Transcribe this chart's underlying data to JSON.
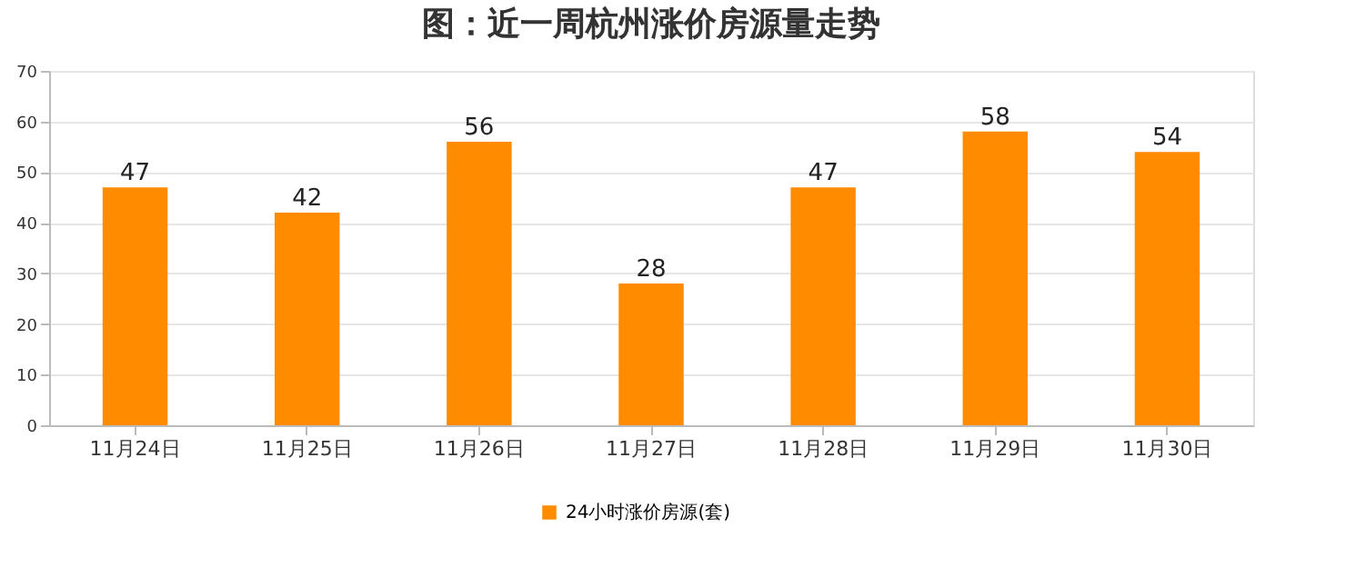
{
  "chart_data": {
    "type": "bar",
    "title": "图：近一周杭州涨价房源量走势",
    "categories": [
      "11月24日",
      "11月25日",
      "11月26日",
      "11月27日",
      "11月28日",
      "11月29日",
      "11月30日"
    ],
    "series": [
      {
        "name": "24小时涨价房源(套)",
        "color": "#ff8c00",
        "values": [
          47,
          42,
          56,
          28,
          47,
          58,
          54
        ]
      }
    ],
    "ylim": [
      0,
      70
    ],
    "yticks": [
      0,
      10,
      20,
      30,
      40,
      50,
      60,
      70
    ],
    "grid": "y",
    "legend": "bottom",
    "data_labels": true
  }
}
